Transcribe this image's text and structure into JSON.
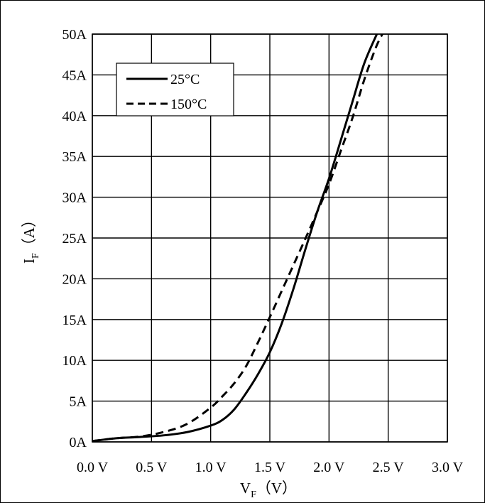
{
  "chart_data": {
    "type": "line",
    "xlabel": "V",
    "xlabel_sub": "F",
    "xlabel_unit": "（V）",
    "ylabel": "I",
    "ylabel_sub": "F",
    "ylabel_unit": "（A）",
    "xlim": [
      0,
      3.0
    ],
    "ylim": [
      0,
      50
    ],
    "grid": true,
    "legend_position": "top-left",
    "x_ticks": [
      0,
      0.5,
      1.0,
      1.5,
      2.0,
      2.5,
      3.0
    ],
    "x_tick_labels": [
      "0.0 V",
      "0.5 V",
      "1.0 V",
      "1.5 V",
      "2.0 V",
      "2.5 V",
      "3.0 V"
    ],
    "y_ticks": [
      0,
      5,
      10,
      15,
      20,
      25,
      30,
      35,
      40,
      45,
      50
    ],
    "y_tick_labels": [
      "0A",
      "5A",
      "10A",
      "15A",
      "20A",
      "25A",
      "30A",
      "35A",
      "40A",
      "45A",
      "50A"
    ],
    "series": [
      {
        "name": "25°C",
        "style": "solid",
        "color": "#000000",
        "points": [
          [
            0.0,
            0.1
          ],
          [
            0.2,
            0.45
          ],
          [
            0.4,
            0.6
          ],
          [
            0.6,
            0.8
          ],
          [
            0.8,
            1.2
          ],
          [
            1.0,
            2.0
          ],
          [
            1.1,
            2.7
          ],
          [
            1.2,
            4.0
          ],
          [
            1.3,
            6.0
          ],
          [
            1.4,
            8.3
          ],
          [
            1.5,
            11.0
          ],
          [
            1.6,
            14.5
          ],
          [
            1.7,
            18.8
          ],
          [
            1.8,
            23.6
          ],
          [
            1.9,
            28.2
          ],
          [
            2.0,
            32.3
          ],
          [
            2.1,
            37.0
          ],
          [
            2.2,
            41.8
          ],
          [
            2.3,
            46.5
          ],
          [
            2.42,
            50.5
          ]
        ]
      },
      {
        "name": "150°C",
        "style": "dashed",
        "color": "#000000",
        "points": [
          [
            0.0,
            0.1
          ],
          [
            0.2,
            0.45
          ],
          [
            0.4,
            0.65
          ],
          [
            0.6,
            1.2
          ],
          [
            0.8,
            2.2
          ],
          [
            1.0,
            4.2
          ],
          [
            1.1,
            5.6
          ],
          [
            1.2,
            7.2
          ],
          [
            1.3,
            9.3
          ],
          [
            1.4,
            12.2
          ],
          [
            1.5,
            15.3
          ],
          [
            1.6,
            18.5
          ],
          [
            1.7,
            21.7
          ],
          [
            1.8,
            24.9
          ],
          [
            1.9,
            28.2
          ],
          [
            2.0,
            31.6
          ],
          [
            2.1,
            35.7
          ],
          [
            2.2,
            39.8
          ],
          [
            2.3,
            44.5
          ],
          [
            2.4,
            48.5
          ],
          [
            2.47,
            50.5
          ]
        ]
      }
    ]
  }
}
